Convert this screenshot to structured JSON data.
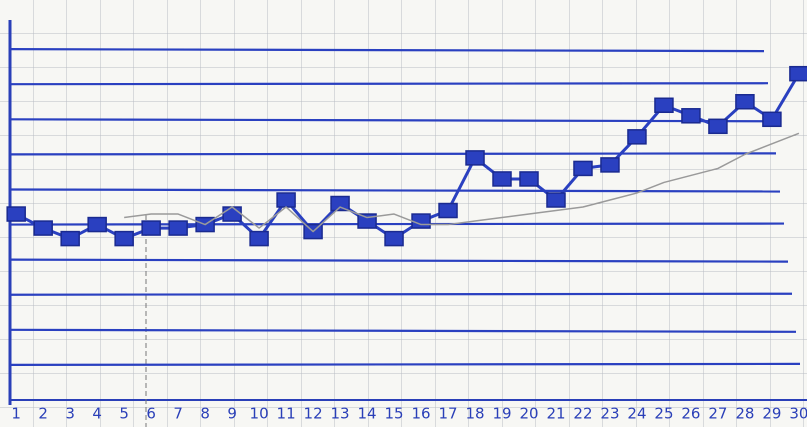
{
  "chart_data": {
    "type": "line",
    "x": [
      1,
      2,
      3,
      4,
      5,
      6,
      7,
      8,
      9,
      10,
      11,
      12,
      13,
      14,
      15,
      16,
      17,
      18,
      19,
      20,
      21,
      22,
      23,
      24,
      25,
      26,
      27,
      28,
      29,
      30
    ],
    "series": [
      {
        "color": "#2a40c0",
        "values": [
          5.3,
          4.9,
          4.6,
          5.0,
          4.6,
          4.9,
          4.9,
          5.0,
          5.3,
          4.6,
          5.7,
          4.8,
          5.6,
          5.1,
          4.6,
          5.1,
          5.4,
          6.9,
          6.3,
          6.3,
          5.7,
          6.6,
          6.7,
          7.5,
          8.4,
          8.1,
          7.8,
          8.5,
          8.0,
          9.3
        ]
      },
      {
        "color": "#9a9a9a",
        "values": [
          null,
          null,
          null,
          null,
          5.2,
          5.3,
          5.3,
          5.0,
          5.5,
          4.9,
          5.5,
          4.8,
          5.5,
          5.2,
          5.3,
          5.0,
          5.0,
          5.1,
          5.2,
          5.3,
          5.4,
          5.5,
          5.7,
          5.9,
          6.2,
          6.4,
          6.6,
          7.0,
          7.3,
          7.6
        ]
      }
    ],
    "xlim": [
      0.4,
      30.3
    ],
    "ylim": [
      0,
      11.4
    ],
    "yticks": [
      1,
      2,
      3,
      4,
      5,
      6,
      7,
      8,
      9,
      10
    ],
    "grid": true,
    "marker": "square"
  }
}
